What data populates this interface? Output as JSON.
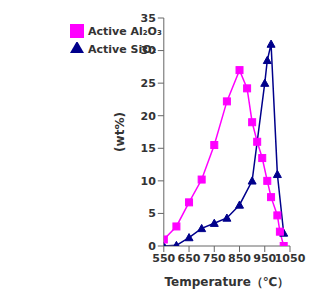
{
  "chart_data": {
    "type": "line",
    "xlabel": "Temperature（℃）",
    "ylabel": "(wt%)",
    "xlim": [
      550,
      1050
    ],
    "ylim": [
      0,
      35
    ],
    "xticks": [
      550,
      650,
      750,
      850,
      950,
      1050
    ],
    "yticks": [
      0,
      5,
      10,
      15,
      20,
      25,
      30,
      35
    ],
    "grid": false,
    "legend": "upper left",
    "series": [
      {
        "name": "Active SiO₂",
        "color": "#00008B",
        "marker": "triangle",
        "x": [
          550,
          600,
          650,
          700,
          750,
          800,
          850,
          900,
          950,
          960,
          975,
          1000,
          1025
        ],
        "values": [
          0.0,
          0.1,
          1.3,
          2.7,
          3.5,
          4.3,
          6.3,
          10.0,
          25.0,
          28.5,
          31.0,
          11.0,
          2.0
        ]
      },
      {
        "name": "Active Al₂O₃",
        "color": "#FF00FF",
        "marker": "square",
        "x": [
          550,
          600,
          650,
          700,
          750,
          800,
          850,
          880,
          900,
          920,
          940,
          960,
          975,
          1000,
          1010,
          1025
        ],
        "values": [
          1.0,
          3.0,
          6.7,
          10.2,
          15.5,
          22.2,
          27.0,
          24.2,
          19.0,
          16.0,
          13.5,
          10.0,
          7.5,
          4.7,
          2.2,
          0.0
        ]
      }
    ]
  }
}
